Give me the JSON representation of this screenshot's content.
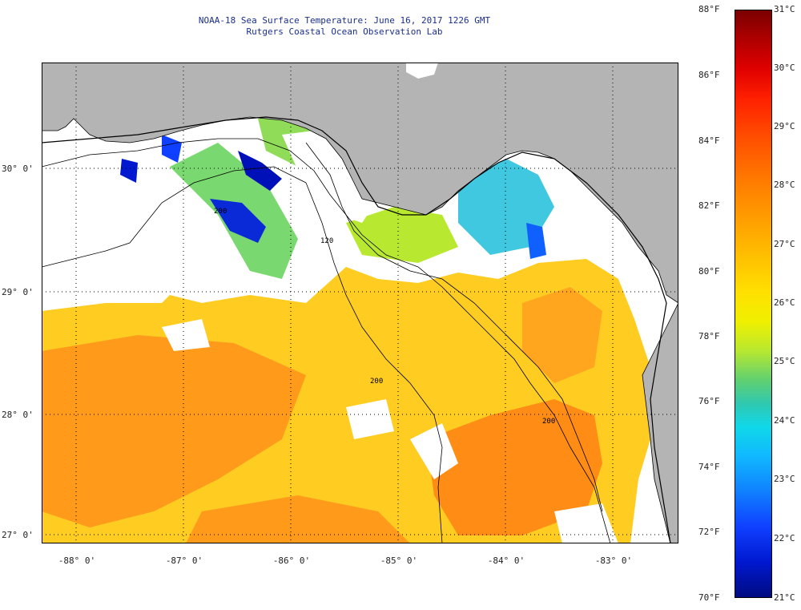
{
  "title": {
    "line1": "NOAA-18 Sea Surface Temperature:  June 16, 2017 1226 GMT",
    "line2": "Rutgers Coastal Ocean Observation Lab"
  },
  "axes": {
    "lat_labels": [
      "30° 0'",
      "29° 0'",
      "28° 0'",
      "27° 0'"
    ],
    "lon_labels": [
      "-88° 0'",
      "-87° 0'",
      "-86° 0'",
      "-85° 0'",
      "-84° 0'",
      "-83° 0'"
    ],
    "lat_range": [
      26.95,
      30.85
    ],
    "lon_range": [
      -88.3,
      -82.5
    ]
  },
  "colorbar": {
    "fahrenheit": [
      "88°F",
      "86°F",
      "84°F",
      "82°F",
      "80°F",
      "78°F",
      "76°F",
      "74°F",
      "72°F",
      "70°F"
    ],
    "celsius": [
      "31°C",
      "30°C",
      "29°C",
      "28°C",
      "27°C",
      "26°C",
      "25°C",
      "24°C",
      "23°C",
      "22°C",
      "21°C"
    ],
    "range_c": [
      21,
      31
    ]
  },
  "contour_labels": {
    "c1": "200",
    "c2": "120",
    "c3": "200",
    "c4": "200"
  },
  "colors": {
    "land": "#b4b4b4",
    "water_nodata": "#ffffff",
    "sst_warm": "#ff9a10",
    "sst_mid": "#ffd21a",
    "sst_cool": "#30c8f0",
    "sst_cold": "#0010c8"
  }
}
